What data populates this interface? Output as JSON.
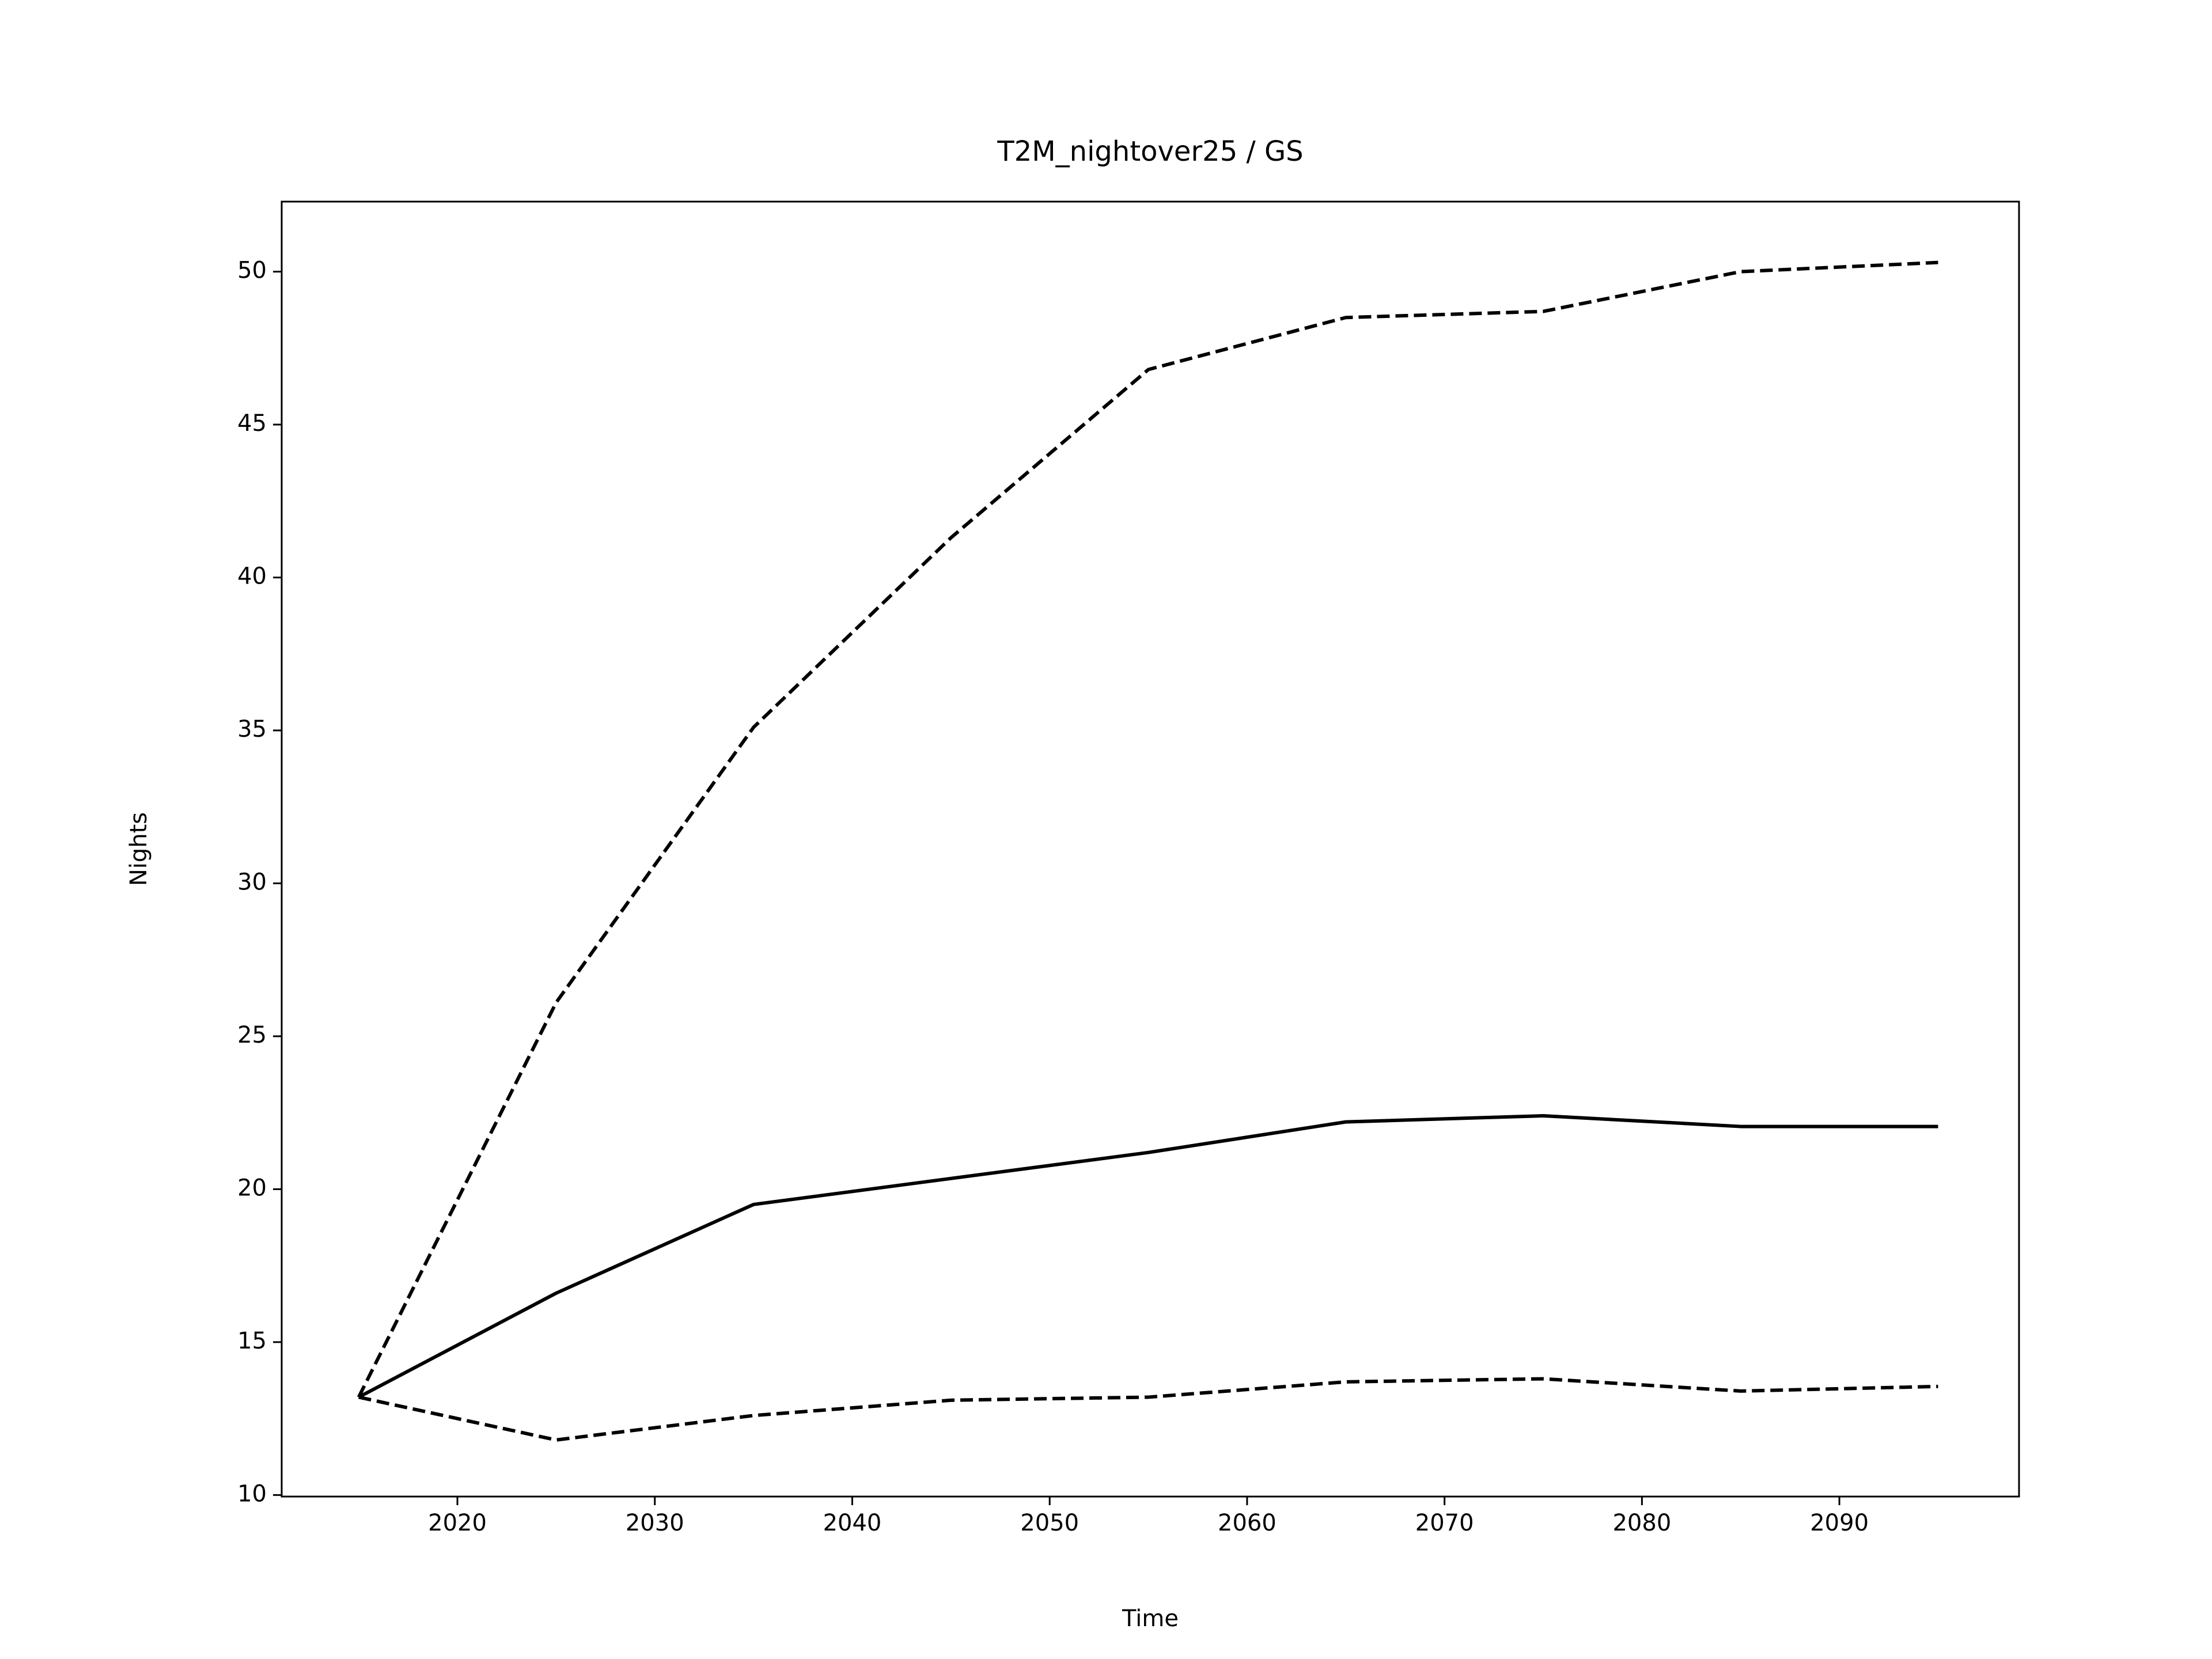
{
  "chart_data": {
    "type": "line",
    "title": "T2M_nightover25 / GS",
    "xlabel": "Time",
    "ylabel": "Nights",
    "x": [
      2015,
      2025,
      2035,
      2045,
      2055,
      2065,
      2075,
      2085,
      2095
    ],
    "series": [
      {
        "color": "#000000",
        "linestyle": "solid",
        "values": [
          13.2,
          16.6,
          19.5,
          20.35,
          21.2,
          22.2,
          22.4,
          22.05,
          22.05
        ]
      },
      {
        "color": "#000000",
        "linestyle": "dashed",
        "values": [
          13.2,
          26.1,
          35.1,
          41.3,
          46.8,
          48.5,
          48.7,
          50.0,
          50.3
        ]
      },
      {
        "color": "#000000",
        "linestyle": "dashed",
        "values": [
          13.2,
          11.8,
          12.6,
          13.1,
          13.2,
          13.7,
          13.8,
          13.4,
          13.55
        ]
      }
    ],
    "xlim": [
      2011.1,
      2099.1
    ],
    "xticks": [
      2020,
      2030,
      2040,
      2050,
      2060,
      2070,
      2080,
      2090
    ],
    "ylim": [
      9.95,
      52.29
    ],
    "yticks": [
      10,
      15,
      20,
      25,
      30,
      35,
      40,
      45,
      50
    ],
    "grid": false
  }
}
